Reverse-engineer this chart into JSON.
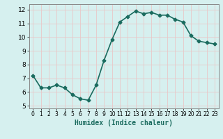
{
  "x": [
    0,
    1,
    2,
    3,
    4,
    5,
    6,
    7,
    8,
    9,
    10,
    11,
    12,
    13,
    14,
    15,
    16,
    17,
    18,
    19,
    20,
    21,
    22,
    23
  ],
  "y": [
    7.2,
    6.3,
    6.3,
    6.5,
    6.3,
    5.8,
    5.5,
    5.4,
    6.5,
    8.3,
    9.8,
    11.1,
    11.5,
    11.9,
    11.7,
    11.8,
    11.6,
    11.6,
    11.3,
    11.1,
    10.1,
    9.7,
    9.6,
    9.5
  ],
  "xlabel": "Humidex (Indice chaleur)",
  "ylim": [
    4.8,
    12.4
  ],
  "xlim": [
    -0.5,
    23.5
  ],
  "yticks": [
    5,
    6,
    7,
    8,
    9,
    10,
    11,
    12
  ],
  "xtick_labels": [
    "0",
    "1",
    "2",
    "3",
    "4",
    "5",
    "6",
    "7",
    "8",
    "9",
    "10",
    "11",
    "12",
    "13",
    "14",
    "15",
    "16",
    "17",
    "18",
    "19",
    "20",
    "21",
    "22",
    "23"
  ],
  "line_color": "#1a6b5e",
  "bg_color": "#d6f0ef",
  "grid_color": "#c8e8e6",
  "marker": "D",
  "marker_size": 2.5,
  "line_width": 1.2,
  "xlabel_fontsize": 7,
  "ytick_fontsize": 6.5,
  "xtick_fontsize": 5.5
}
